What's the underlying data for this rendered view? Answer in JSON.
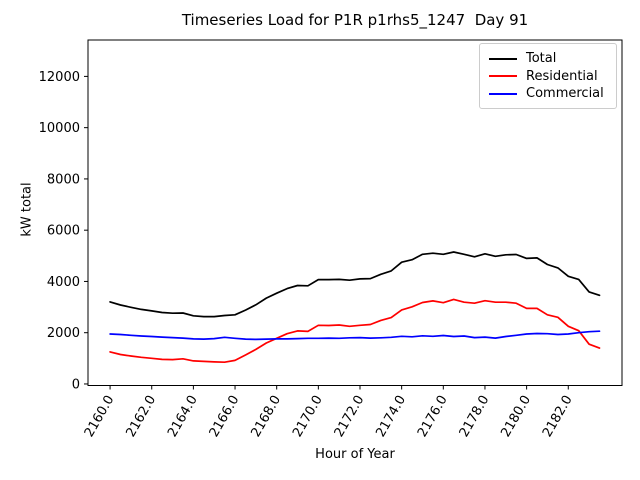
{
  "chart_data": {
    "type": "line",
    "title": "Timeseries Load for P1R p1rhs5_1247  Day 91",
    "xlabel": "Hour of Year",
    "ylabel": "kW total",
    "grid": false,
    "legend_position": "upper right",
    "tick_label_rotation_deg": 60,
    "xlim": [
      2158.94,
      2184.58
    ],
    "ylim": [
      -60,
      13420
    ],
    "xticks": {
      "values": [
        2160,
        2162,
        2164,
        2166,
        2168,
        2170,
        2172,
        2174,
        2176,
        2178,
        2180,
        2182
      ],
      "labels": [
        "2160.0",
        "2162.0",
        "2164.0",
        "2166.0",
        "2168.0",
        "2170.0",
        "2172.0",
        "2174.0",
        "2176.0",
        "2178.0",
        "2180.0",
        "2182.0"
      ]
    },
    "yticks": {
      "values": [
        0,
        2000,
        4000,
        6000,
        8000,
        10000,
        12000
      ],
      "labels": [
        "0",
        "2000",
        "4000",
        "6000",
        "8000",
        "10000",
        "12000"
      ]
    },
    "x": [
      2160.0,
      2160.5,
      2161.0,
      2161.5,
      2162.0,
      2162.5,
      2163.0,
      2163.5,
      2164.0,
      2164.5,
      2165.0,
      2165.5,
      2166.0,
      2166.5,
      2167.0,
      2167.5,
      2168.0,
      2168.5,
      2169.0,
      2169.5,
      2170.0,
      2170.5,
      2171.0,
      2171.5,
      2172.0,
      2172.5,
      2173.0,
      2173.5,
      2174.0,
      2174.5,
      2175.0,
      2175.5,
      2176.0,
      2176.5,
      2177.0,
      2177.5,
      2178.0,
      2178.5,
      2179.0,
      2179.5,
      2180.0,
      2180.5,
      2181.0,
      2181.5,
      2182.0,
      2182.5,
      2183.0,
      2183.5
    ],
    "series": [
      {
        "name": "Total",
        "color": "#000000",
        "values": [
          3200,
          3080,
          2990,
          2910,
          2850,
          2790,
          2760,
          2770,
          2660,
          2630,
          2630,
          2670,
          2700,
          2880,
          3090,
          3350,
          3540,
          3720,
          3840,
          3830,
          4070,
          4070,
          4080,
          4050,
          4100,
          4110,
          4280,
          4410,
          4750,
          4850,
          5060,
          5100,
          5060,
          5150,
          5060,
          4960,
          5080,
          4980,
          5040,
          5050,
          4900,
          4920,
          4660,
          4530,
          4200,
          4080,
          3590,
          3460
        ]
      },
      {
        "name": "Residential",
        "color": "#ff0000",
        "values": [
          1250,
          1150,
          1090,
          1040,
          1000,
          960,
          950,
          980,
          900,
          880,
          860,
          850,
          920,
          1130,
          1350,
          1600,
          1780,
          1960,
          2070,
          2050,
          2290,
          2280,
          2300,
          2250,
          2290,
          2320,
          2480,
          2590,
          2890,
          3010,
          3180,
          3240,
          3170,
          3300,
          3190,
          3150,
          3250,
          3190,
          3190,
          3150,
          2950,
          2950,
          2700,
          2600,
          2250,
          2080,
          1550,
          1400
        ]
      },
      {
        "name": "Commercial",
        "color": "#0000ff",
        "values": [
          1950,
          1930,
          1900,
          1870,
          1850,
          1830,
          1810,
          1790,
          1760,
          1750,
          1770,
          1820,
          1780,
          1750,
          1740,
          1750,
          1760,
          1760,
          1770,
          1780,
          1780,
          1790,
          1780,
          1800,
          1810,
          1790,
          1800,
          1820,
          1860,
          1840,
          1880,
          1860,
          1890,
          1850,
          1870,
          1810,
          1830,
          1790,
          1850,
          1900,
          1950,
          1970,
          1960,
          1930,
          1950,
          2000,
          2040,
          2060
        ]
      }
    ]
  },
  "colors": {
    "background": "#ffffff",
    "axes": "#000000",
    "legend_border": "#cccccc"
  }
}
